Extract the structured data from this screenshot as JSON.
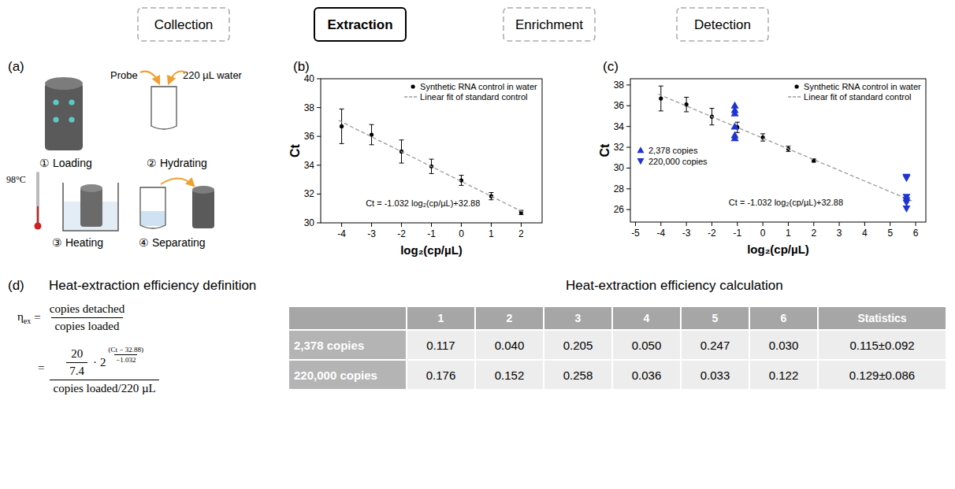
{
  "workflow": [
    {
      "label": "Collection"
    },
    {
      "label": "Extraction",
      "highlight": true
    },
    {
      "label": "Enrichment"
    },
    {
      "label": "Detection"
    }
  ],
  "panel_a": {
    "letter": "(a)",
    "steps": [
      "① Loading",
      "② Hydrating",
      "③ Heating",
      "④ Separating"
    ],
    "probe": "Probe",
    "water": "220 µL water",
    "temperature": "98°C"
  },
  "chart_data": [
    {
      "letter": "(b)",
      "type": "scatter",
      "x_label": "log₂(cp/µL)",
      "y_label": "Ct",
      "xlim": [
        -4.7,
        2.7
      ],
      "ylim": [
        30,
        40
      ],
      "xticks": [
        -4,
        -3,
        -2,
        -1,
        0,
        1,
        2
      ],
      "yticks": [
        30,
        32,
        34,
        36,
        38,
        40
      ],
      "grid": false,
      "legend": "top-right",
      "annotation": "Ct = -1.032 log₂(cp/µL)+32.88",
      "series": [
        {
          "name": "Synthetic RNA control in water",
          "type": "scatter",
          "marker": "circle",
          "color": "#000000",
          "x": [
            -4,
            -3,
            -2,
            -1,
            0,
            1,
            2
          ],
          "values": [
            36.7,
            36.12,
            34.95,
            33.92,
            32.95,
            31.85,
            30.72
          ],
          "errors": [
            1.2,
            0.7,
            0.8,
            0.5,
            0.35,
            0.25,
            0.15
          ]
        },
        {
          "name": "Linear fit of standard control",
          "type": "line",
          "line_style": "dashed",
          "color": "#9a9a9a",
          "x": [
            -4.1,
            2.1
          ],
          "values": [
            37.11,
            30.71
          ]
        }
      ]
    },
    {
      "letter": "(c)",
      "type": "scatter",
      "x_label": "log₂(cp/µL)",
      "y_label": "Ct",
      "xlim": [
        -5.2,
        6.4
      ],
      "ylim": [
        24.8,
        38.6
      ],
      "xticks": [
        -5,
        -4,
        -3,
        -2,
        -1,
        0,
        1,
        2,
        3,
        4,
        5,
        6
      ],
      "yticks": [
        26,
        28,
        30,
        32,
        34,
        36,
        38
      ],
      "grid": false,
      "legend": "top-right",
      "annotation": "Ct = -1.032 log₂(cp/µL)+32.88",
      "series": [
        {
          "name": "Synthetic RNA control in water",
          "type": "scatter",
          "marker": "circle",
          "color": "#000000",
          "x": [
            -4,
            -3,
            -2,
            -1,
            0,
            1,
            2
          ],
          "values": [
            36.7,
            36.12,
            34.95,
            33.92,
            32.95,
            31.85,
            30.72
          ],
          "errors": [
            1.2,
            0.7,
            0.8,
            0.5,
            0.35,
            0.25,
            0.15
          ]
        },
        {
          "name": "Linear fit of standard control",
          "type": "line",
          "line_style": "dashed",
          "color": "#9a9a9a",
          "x": [
            -4.1,
            5.9
          ],
          "values": [
            37.11,
            26.79
          ]
        },
        {
          "name": "2,378 copies",
          "type": "scatter",
          "marker": "triangle-up",
          "color": "#1f33d1",
          "x": [
            -1.1,
            -1.1,
            -1.1,
            -1.1,
            -1.1,
            -1.1
          ],
          "values": [
            34.01,
            35.61,
            33.18,
            35.28,
            32.9,
            36.04
          ]
        },
        {
          "name": "220,000 copies",
          "type": "scatter",
          "marker": "triangle-down",
          "color": "#1f33d1",
          "x": [
            5.64,
            5.64,
            5.64,
            5.64,
            5.64,
            5.64
          ],
          "values": [
            26.66,
            26.88,
            26.09,
            29.03,
            29.15,
            27.21
          ]
        }
      ]
    }
  ],
  "panel_d": {
    "letter": "(d)",
    "definition_title": "Heat-extraction efficiency definition",
    "calculation_title": "Heat-extraction efficiency calculation",
    "formula": {
      "lhs": "η",
      "lhs_sub": "ex",
      "equals": "=",
      "num1": "copies detached",
      "den1": "copies loaded",
      "coef_num": "20",
      "coef_den": "7.4",
      "dot": "·",
      "base": "2",
      "exp_num": "(Ct − 32.88)",
      "exp_den": "−1.032",
      "den2": "copies loaded/220 µL"
    },
    "table": {
      "header": [
        "",
        "1",
        "2",
        "3",
        "4",
        "5",
        "6",
        "Statistics"
      ],
      "rows": [
        [
          "2,378 copies",
          "0.117",
          "0.040",
          "0.205",
          "0.050",
          "0.247",
          "0.030",
          "0.115±0.092"
        ],
        [
          "220,000 copies",
          "0.176",
          "0.152",
          "0.258",
          "0.036",
          "0.033",
          "0.122",
          "0.129±0.086"
        ]
      ]
    }
  }
}
